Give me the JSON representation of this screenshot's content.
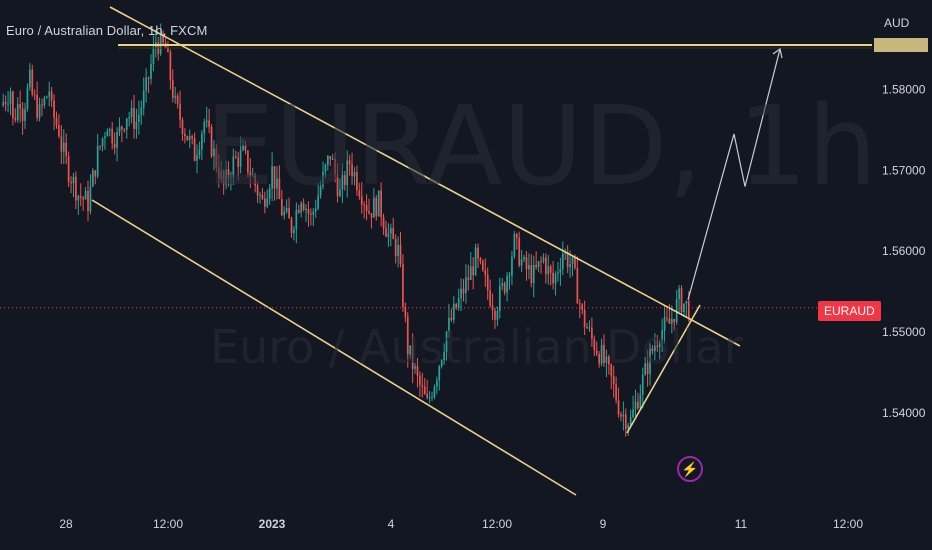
{
  "header": {
    "title": "Euro / Australian Dollar, 1h, FXCM",
    "watermark_symbol": "EURAUD, 1h",
    "watermark_name": "Euro / Australian Dollar"
  },
  "price_axis": {
    "currency": "AUD",
    "ticks": [
      "1.58000",
      "1.57000",
      "1.56000",
      "1.55000",
      "1.54000"
    ],
    "symbol_badge": "EURAUD",
    "badge_color": "#f23645"
  },
  "time_axis": {
    "ticks": [
      "28",
      "12:00",
      "2023",
      "4",
      "12:00",
      "9",
      "11",
      "12:00"
    ]
  },
  "colors": {
    "background": "#131722",
    "up_candle": "#26a69a",
    "down_candle": "#ef5350",
    "trendline": "#e8d389",
    "arrow": "#c9ccd3",
    "current_price_line": "#f23645"
  },
  "indicators": {
    "bolt_icon": "lightning-icon"
  },
  "chart_data": {
    "type": "candlestick",
    "title": "Euro / Australian Dollar, 1h, FXCM",
    "ylabel": "AUD",
    "ylim": [
      1.532,
      1.592
    ],
    "current_price": 1.553,
    "horizontal_level": 1.5855,
    "x_ticks": [
      "28",
      "12:00",
      "2023",
      "4",
      "12:00",
      "9",
      "11",
      "12:00"
    ],
    "price_path": [
      [
        1.578,
        1.58
      ],
      [
        1.575,
        1.579
      ],
      [
        1.576,
        1.581
      ],
      [
        1.58,
        1.577
      ],
      [
        1.577,
        1.58
      ],
      [
        1.578,
        1.575
      ],
      [
        1.574,
        1.57
      ],
      [
        1.57,
        1.567
      ],
      [
        1.567,
        1.566
      ],
      [
        1.566,
        1.572
      ],
      [
        1.572,
        1.576
      ],
      [
        1.575,
        1.574
      ],
      [
        1.574,
        1.577
      ],
      [
        1.577,
        1.576
      ],
      [
        1.576,
        1.58
      ],
      [
        1.58,
        1.586
      ],
      [
        1.586,
        1.585
      ],
      [
        1.585,
        1.578
      ],
      [
        1.578,
        1.575
      ],
      [
        1.575,
        1.572
      ],
      [
        1.572,
        1.576
      ],
      [
        1.576,
        1.572
      ],
      [
        1.572,
        1.568
      ],
      [
        1.568,
        1.571
      ],
      [
        1.571,
        1.572
      ],
      [
        1.572,
        1.569
      ],
      [
        1.569,
        1.566
      ],
      [
        1.566,
        1.57
      ],
      [
        1.57,
        1.565
      ],
      [
        1.565,
        1.563
      ],
      [
        1.563,
        1.567
      ],
      [
        1.567,
        1.564
      ],
      [
        1.564,
        1.568
      ],
      [
        1.568,
        1.572
      ],
      [
        1.572,
        1.567
      ],
      [
        1.567,
        1.571
      ],
      [
        1.571,
        1.568
      ],
      [
        1.568,
        1.565
      ],
      [
        1.565,
        1.566
      ],
      [
        1.566,
        1.562
      ],
      [
        1.562,
        1.56
      ],
      [
        1.56,
        1.548
      ],
      [
        1.548,
        1.544
      ],
      [
        1.544,
        1.541
      ],
      [
        1.541,
        1.545
      ],
      [
        1.545,
        1.55
      ],
      [
        1.55,
        1.553
      ],
      [
        1.553,
        1.556
      ],
      [
        1.556,
        1.559
      ],
      [
        1.559,
        1.556
      ],
      [
        1.556,
        1.553
      ],
      [
        1.553,
        1.556
      ],
      [
        1.556,
        1.561
      ],
      [
        1.561,
        1.558
      ],
      [
        1.558,
        1.557
      ],
      [
        1.557,
        1.559
      ],
      [
        1.559,
        1.556
      ],
      [
        1.556,
        1.56
      ],
      [
        1.56,
        1.558
      ],
      [
        1.558,
        1.552
      ],
      [
        1.552,
        1.549
      ],
      [
        1.549,
        1.547
      ],
      [
        1.547,
        1.544
      ],
      [
        1.544,
        1.54
      ],
      [
        1.54,
        1.539
      ],
      [
        1.539,
        1.543
      ],
      [
        1.543,
        1.547
      ],
      [
        1.547,
        1.55
      ],
      [
        1.55,
        1.551
      ],
      [
        1.551,
        1.554
      ],
      [
        1.554,
        1.553
      ]
    ],
    "trendlines": [
      {
        "name": "channel-upper",
        "from": [
          "2022-12-27 12:00",
          1.59
        ],
        "to": [
          "2023-01-10 14:00",
          1.55
        ]
      },
      {
        "name": "channel-lower",
        "from": [
          "2022-12-28 14:00",
          1.566
        ],
        "to": [
          "2023-01-07 14:00",
          1.534
        ]
      },
      {
        "name": "support",
        "from": [
          "2023-01-09 08:00",
          1.539
        ],
        "to": [
          "2023-01-10 06:00",
          1.556
        ]
      }
    ],
    "projection": [
      [
        1.554,
        1.5745
      ],
      [
        1.5745,
        1.568
      ],
      [
        1.568,
        1.585
      ]
    ]
  }
}
